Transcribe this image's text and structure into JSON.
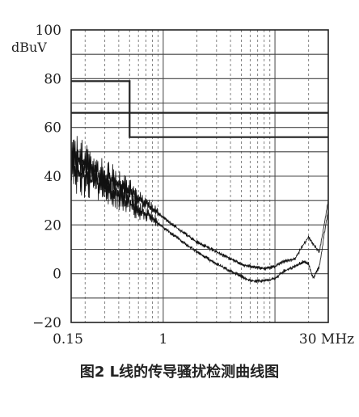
{
  "chart_data": {
    "type": "line",
    "title": "",
    "xlabel": "",
    "ylabel": "dBuV",
    "x_scale": "log",
    "xlim": [
      0.15,
      30
    ],
    "ylim": [
      -20,
      100
    ],
    "x_tick_labels": [
      {
        "value": 0.15,
        "label": "0.15"
      },
      {
        "value": 1,
        "label": "1"
      },
      {
        "value": 30,
        "label": "30 MHz"
      }
    ],
    "y_ticks": [
      -20,
      0,
      20,
      40,
      60,
      80,
      100
    ],
    "y_tick_labels": [
      "−20",
      "0",
      "20",
      "40",
      "60",
      "80",
      "100"
    ],
    "grid": true,
    "limit_lines": [
      {
        "x": [
          0.15,
          0.5,
          0.5,
          30
        ],
        "y": [
          79,
          79,
          66,
          66
        ]
      },
      {
        "x": [
          0.15,
          0.5,
          0.5,
          30
        ],
        "y": [
          66,
          66,
          56,
          56
        ]
      }
    ],
    "series": [
      {
        "x": [
          0.15,
          0.17,
          0.2,
          0.25,
          0.3,
          0.4,
          0.5,
          0.6,
          0.8,
          1,
          1.5,
          2,
          3,
          4,
          5,
          6,
          8,
          10,
          12,
          15,
          18,
          20,
          22,
          25,
          28,
          30
        ],
        "y": [
          50,
          47,
          45,
          42,
          40,
          37,
          34,
          31,
          27,
          23,
          17,
          13,
          9,
          6,
          4,
          3,
          2,
          3,
          5,
          6,
          12,
          15,
          12,
          9,
          22,
          30
        ]
      },
      {
        "x": [
          0.15,
          0.17,
          0.2,
          0.25,
          0.3,
          0.4,
          0.5,
          0.6,
          0.8,
          1,
          1.5,
          2,
          3,
          4,
          5,
          6,
          8,
          10,
          12,
          15,
          18,
          20,
          22,
          25,
          28,
          30
        ],
        "y": [
          44,
          42,
          40,
          37,
          35,
          32,
          29,
          26,
          23,
          19,
          13,
          9,
          4,
          1,
          -1,
          -3,
          -3,
          -2,
          1,
          3,
          5,
          4,
          -2,
          3,
          18,
          26
        ]
      }
    ]
  },
  "caption": "图2 L线的传导骚扰检测曲线图"
}
